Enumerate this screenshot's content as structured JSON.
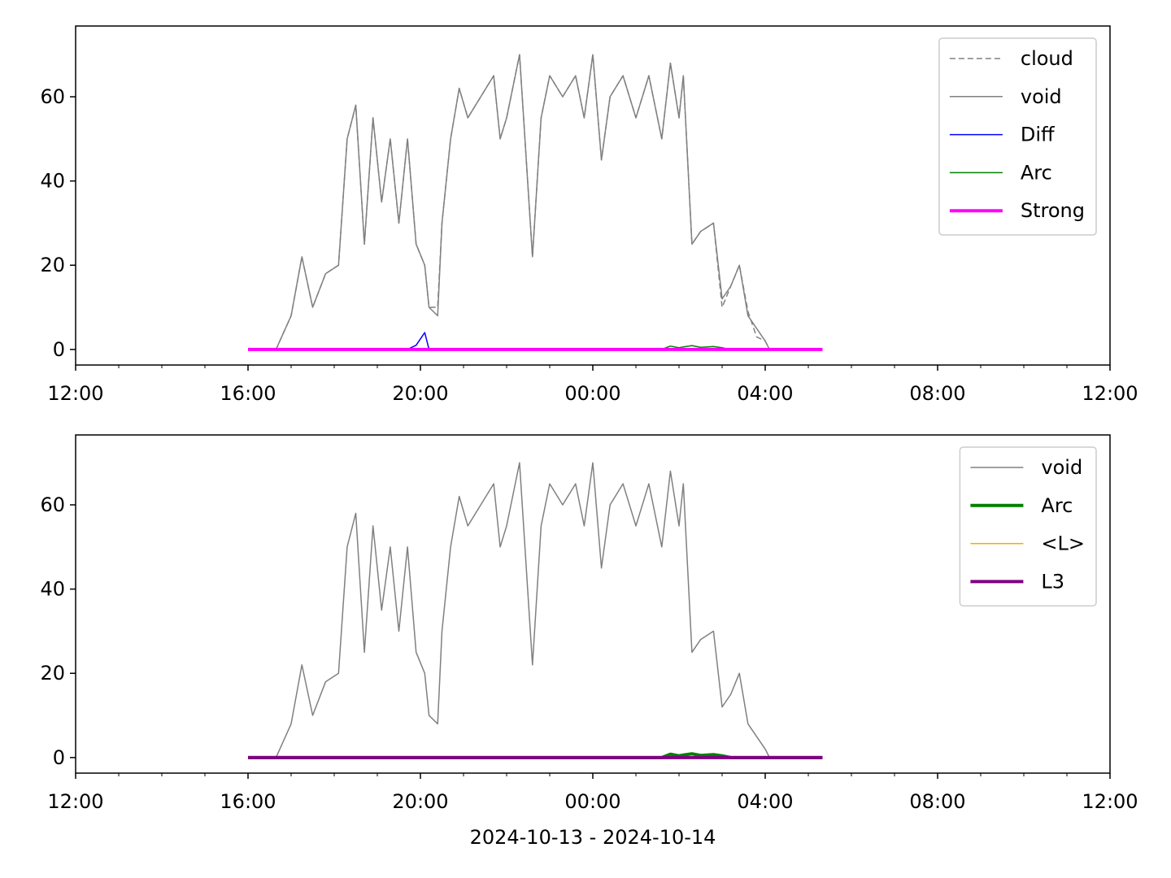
{
  "chart_data": [
    {
      "type": "line",
      "x": [
        16,
        16.25,
        16.5,
        16.65,
        17.0,
        17.25,
        17.5,
        17.8,
        18.1,
        18.3,
        18.5,
        18.7,
        18.9,
        19.1,
        19.3,
        19.5,
        19.7,
        19.9,
        20.1,
        20.2,
        20.4,
        20.5,
        20.7,
        20.9,
        21.1,
        21.4,
        21.7,
        21.85,
        22.0,
        22.3,
        22.6,
        22.8,
        23.0,
        23.3,
        23.6,
        23.8,
        24.0,
        24.2,
        24.4,
        24.7,
        25.0,
        25.3,
        25.6,
        25.8,
        26.0,
        26.1,
        26.3,
        26.5,
        26.8,
        27.0,
        27.2,
        27.4,
        27.6,
        27.8,
        28.0,
        28.1,
        28.5,
        29.0,
        29.33
      ],
      "series": [
        {
          "name": "cloud",
          "color": "#808080",
          "linestyle": "dashed",
          "linewidth": 1.5,
          "values": [
            0,
            0,
            0,
            0,
            8,
            22,
            10,
            18,
            20,
            50,
            58,
            25,
            55,
            35,
            50,
            30,
            50,
            25,
            20,
            10,
            10,
            30,
            50,
            62,
            55,
            60,
            65,
            50,
            55,
            70,
            22,
            55,
            65,
            60,
            65,
            55,
            70,
            45,
            60,
            65,
            55,
            65,
            50,
            68,
            55,
            65,
            25,
            28,
            30,
            10,
            15,
            20,
            9,
            3,
            2,
            0,
            0,
            0,
            0
          ]
        },
        {
          "name": "void",
          "color": "#808080",
          "linestyle": "solid",
          "linewidth": 1.5,
          "values": [
            0,
            0,
            0,
            0,
            8,
            22,
            10,
            18,
            20,
            50,
            58,
            25,
            55,
            35,
            50,
            30,
            50,
            25,
            20,
            10,
            8,
            30,
            50,
            62,
            55,
            60,
            65,
            50,
            55,
            70,
            22,
            55,
            65,
            60,
            65,
            55,
            70,
            45,
            60,
            65,
            55,
            65,
            50,
            68,
            55,
            65,
            25,
            28,
            30,
            12,
            15,
            20,
            8,
            5,
            2,
            0,
            0,
            0,
            0
          ]
        },
        {
          "name": "Diff",
          "color": "#0000ff",
          "linestyle": "solid",
          "linewidth": 1.5,
          "values": [
            0,
            0,
            0,
            0,
            0,
            0,
            0,
            0,
            0,
            0,
            0,
            0,
            0,
            0,
            0,
            0,
            0,
            1,
            4,
            0,
            0,
            0,
            0,
            0,
            0,
            0,
            0,
            0,
            0,
            0,
            0,
            0,
            0,
            0,
            0,
            0,
            0,
            0,
            0,
            0,
            0,
            0,
            0,
            0,
            0,
            0,
            0,
            0,
            0,
            0,
            0,
            0,
            0,
            0,
            0,
            0,
            0,
            0,
            0
          ]
        },
        {
          "name": "Arc",
          "color": "#008000",
          "linestyle": "solid",
          "linewidth": 1.5,
          "values": [
            0,
            0,
            0,
            0,
            0,
            0,
            0,
            0,
            0,
            0,
            0,
            0,
            0,
            0,
            0,
            0,
            0,
            0,
            0,
            0,
            0,
            0,
            0,
            0,
            0,
            0,
            0,
            0,
            0,
            0,
            0,
            0,
            0,
            0,
            0,
            0,
            0,
            0,
            0,
            0,
            0,
            0,
            0,
            0.8,
            0.4,
            0.6,
            0.9,
            0.5,
            0.7,
            0.4,
            0,
            0,
            0,
            0,
            0,
            0,
            0,
            0,
            0
          ]
        },
        {
          "name": "Strong",
          "color": "#ff00ff",
          "linestyle": "solid",
          "linewidth": 4,
          "values": [
            0,
            0,
            0,
            0,
            0,
            0,
            0,
            0,
            0,
            0,
            0,
            0,
            0,
            0,
            0,
            0,
            0,
            0,
            0,
            0,
            0,
            0,
            0,
            0,
            0,
            0,
            0,
            0,
            0,
            0,
            0,
            0,
            0,
            0,
            0,
            0,
            0,
            0,
            0,
            0,
            0,
            0,
            0,
            0,
            0,
            0,
            0,
            0,
            0,
            0,
            0,
            0,
            0,
            0,
            0,
            0,
            0,
            0,
            0
          ]
        }
      ],
      "xlim": [
        12,
        36
      ],
      "xticks": [
        {
          "value": 12,
          "label": "12:00"
        },
        {
          "value": 16,
          "label": "16:00"
        },
        {
          "value": 20,
          "label": "20:00"
        },
        {
          "value": 24,
          "label": "00:00"
        },
        {
          "value": 28,
          "label": "04:00"
        },
        {
          "value": 32,
          "label": "08:00"
        },
        {
          "value": 36,
          "label": "12:00"
        }
      ],
      "xminorticks": [
        13,
        14,
        15,
        17,
        18,
        19,
        21,
        22,
        23,
        25,
        26,
        27,
        29,
        30,
        31,
        33,
        34,
        35
      ],
      "ylim": [
        -3.7,
        76.8
      ],
      "yticks": [
        0,
        20,
        40,
        60
      ],
      "legend": "upper right"
    },
    {
      "type": "line",
      "xlabel": "2024-10-13 - 2024-10-14",
      "x": [
        16,
        16.25,
        16.5,
        16.65,
        17.0,
        17.25,
        17.5,
        17.8,
        18.1,
        18.3,
        18.5,
        18.7,
        18.9,
        19.1,
        19.3,
        19.5,
        19.7,
        19.9,
        20.1,
        20.2,
        20.4,
        20.5,
        20.7,
        20.9,
        21.1,
        21.4,
        21.7,
        21.85,
        22.0,
        22.3,
        22.6,
        22.8,
        23.0,
        23.3,
        23.6,
        23.8,
        24.0,
        24.2,
        24.4,
        24.7,
        25.0,
        25.3,
        25.6,
        25.8,
        26.0,
        26.1,
        26.3,
        26.5,
        26.8,
        27.0,
        27.2,
        27.4,
        27.6,
        27.8,
        28.0,
        28.1,
        28.5,
        29.0,
        29.33
      ],
      "series": [
        {
          "name": "void",
          "color": "#808080",
          "linestyle": "solid",
          "linewidth": 1.5,
          "values": [
            0,
            0,
            0,
            0,
            8,
            22,
            10,
            18,
            20,
            50,
            58,
            25,
            55,
            35,
            50,
            30,
            50,
            25,
            20,
            10,
            8,
            30,
            50,
            62,
            55,
            60,
            65,
            50,
            55,
            70,
            22,
            55,
            65,
            60,
            65,
            55,
            70,
            45,
            60,
            65,
            55,
            65,
            50,
            68,
            55,
            65,
            25,
            28,
            30,
            12,
            15,
            20,
            8,
            5,
            2,
            0,
            0,
            0,
            0
          ]
        },
        {
          "name": "Arc",
          "color": "#008000",
          "linestyle": "solid",
          "linewidth": 4,
          "values": [
            0,
            0,
            0,
            0,
            0,
            0,
            0,
            0,
            0,
            0,
            0,
            0,
            0,
            0,
            0,
            0,
            0,
            0,
            0,
            0,
            0,
            0,
            0,
            0,
            0,
            0,
            0,
            0,
            0,
            0,
            0,
            0,
            0,
            0,
            0,
            0,
            0,
            0,
            0,
            0,
            0,
            0,
            0,
            0.8,
            0.4,
            0.6,
            0.9,
            0.5,
            0.7,
            0.4,
            0,
            0,
            0,
            0,
            0,
            0,
            0,
            0,
            0
          ]
        },
        {
          "name": "<L>",
          "color": "#ffa500",
          "linestyle": "solid",
          "linewidth": 1.5,
          "values": [
            0,
            0,
            0,
            0,
            0,
            0,
            0,
            0,
            0,
            0,
            0,
            0,
            0,
            0,
            0,
            0,
            0,
            0,
            0,
            0,
            0,
            0,
            0,
            0,
            0,
            0,
            0,
            0,
            0,
            0,
            0,
            0,
            0,
            0,
            0,
            0,
            0,
            0,
            0,
            0,
            0,
            0,
            0,
            0,
            0,
            0,
            0,
            0,
            0,
            0,
            0,
            0,
            0,
            0,
            0,
            0,
            0,
            0,
            0
          ]
        },
        {
          "name": "L3",
          "color": "#800080",
          "linestyle": "solid",
          "linewidth": 4,
          "values": [
            0,
            0,
            0,
            0,
            0,
            0,
            0,
            0,
            0,
            0,
            0,
            0,
            0,
            0,
            0,
            0,
            0,
            0,
            0,
            0,
            0,
            0,
            0,
            0,
            0,
            0,
            0,
            0,
            0,
            0,
            0,
            0,
            0,
            0,
            0,
            0,
            0,
            0,
            0,
            0,
            0,
            0,
            0,
            0,
            0,
            0,
            0,
            0,
            0,
            0,
            0,
            0,
            0,
            0,
            0,
            0,
            0,
            0,
            0
          ]
        }
      ],
      "xlim": [
        12,
        36
      ],
      "xticks": [
        {
          "value": 12,
          "label": "12:00"
        },
        {
          "value": 16,
          "label": "16:00"
        },
        {
          "value": 20,
          "label": "20:00"
        },
        {
          "value": 24,
          "label": "00:00"
        },
        {
          "value": 28,
          "label": "04:00"
        },
        {
          "value": 32,
          "label": "08:00"
        },
        {
          "value": 36,
          "label": "12:00"
        }
      ],
      "xminorticks": [
        13,
        14,
        15,
        17,
        18,
        19,
        21,
        22,
        23,
        25,
        26,
        27,
        29,
        30,
        31,
        33,
        34,
        35
      ],
      "ylim": [
        -3.7,
        76.6
      ],
      "yticks": [
        0,
        20,
        40,
        60
      ],
      "legend": "upper right"
    }
  ]
}
